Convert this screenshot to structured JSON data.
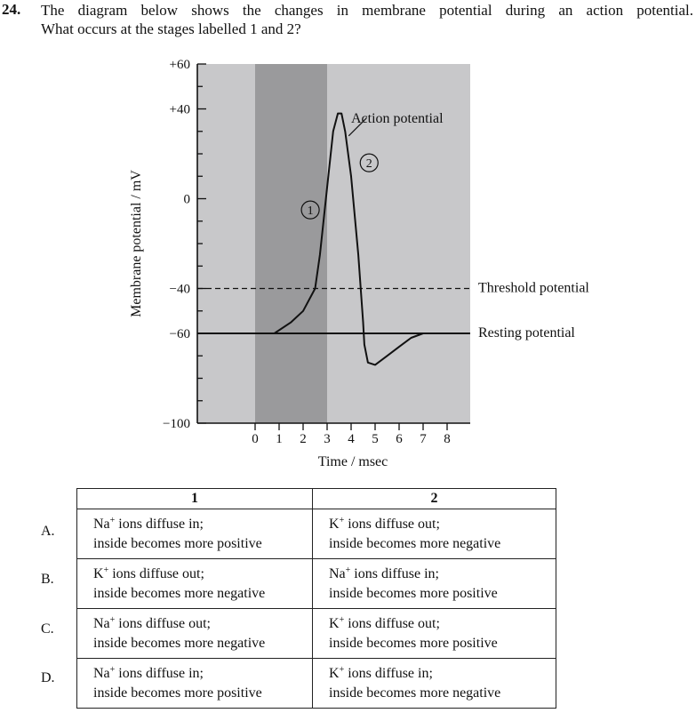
{
  "question": {
    "number": "24.",
    "line1": "The diagram below shows the changes in membrane potential during an action potential.",
    "line2": "What occurs at the stages labelled 1 and 2?"
  },
  "chart_data": {
    "type": "line",
    "xlabel": "Time / msec",
    "ylabel": "Membrane potential / mV",
    "x_ticks": [
      "0",
      "1",
      "2",
      "3",
      "4",
      "5",
      "6",
      "7",
      "8"
    ],
    "y_ticks": [
      "+60",
      "+40",
      "0",
      "−40",
      "−60",
      "−100"
    ],
    "y_tick_values": [
      60,
      40,
      0,
      -40,
      -60,
      -100
    ],
    "xlim": [
      -2.4,
      9
    ],
    "ylim": [
      -100,
      60
    ],
    "shaded_region_x": [
      0,
      3
    ],
    "grid": false,
    "series": [
      {
        "name": "Action potential",
        "x": [
          0,
          0.8,
          1.5,
          2.0,
          2.5,
          2.7,
          3.0,
          3.25,
          3.45,
          3.6,
          3.75,
          4.0,
          4.3,
          4.5,
          4.55,
          4.7,
          5.0,
          5.5,
          6.0,
          6.5,
          7.0,
          7.5,
          8.0
        ],
        "y": [
          -60,
          -60,
          -55,
          -50,
          -40,
          -25,
          5,
          30,
          38,
          38,
          30,
          10,
          -25,
          -55,
          -65,
          -73,
          -74,
          -70,
          -66,
          -62,
          -60,
          -60,
          -60
        ]
      }
    ],
    "reference_lines": [
      {
        "label": "Threshold potential",
        "y": -40,
        "style": "dashed"
      },
      {
        "label": "Resting potential",
        "y": -60,
        "style": "solid"
      }
    ],
    "stage_markers": [
      {
        "label": "1",
        "x": 2.3,
        "y": -5
      },
      {
        "label": "2",
        "x": 4.75,
        "y": 16
      }
    ],
    "callout": {
      "label": "Action potential",
      "x": 3.9,
      "y": 28
    }
  },
  "table": {
    "headers": [
      "1",
      "2"
    ],
    "rows": [
      {
        "letter": "A.",
        "c1": {
          "ion": "Na",
          "charge": "+",
          "rest": " ions diffuse in;",
          "line2": "inside becomes more positive"
        },
        "c2": {
          "ion": "K",
          "charge": "+",
          "rest": " ions diffuse out;",
          "line2": "inside becomes more negative"
        }
      },
      {
        "letter": "B.",
        "c1": {
          "ion": "K",
          "charge": "+",
          "rest": " ions diffuse out;",
          "line2": "inside becomes more negative"
        },
        "c2": {
          "ion": "Na",
          "charge": "+",
          "rest": " ions diffuse in;",
          "line2": "inside becomes more positive"
        }
      },
      {
        "letter": "C.",
        "c1": {
          "ion": "Na",
          "charge": "+",
          "rest": " ions diffuse out;",
          "line2": "inside becomes more negative"
        },
        "c2": {
          "ion": "K",
          "charge": "+",
          "rest": " ions diffuse out;",
          "line2": "inside becomes more positive"
        }
      },
      {
        "letter": "D.",
        "c1": {
          "ion": "Na",
          "charge": "+",
          "rest": " ions diffuse in;",
          "line2": "inside becomes more positive"
        },
        "c2": {
          "ion": "K",
          "charge": "+",
          "rest": " ions diffuse in;",
          "line2": "inside becomes more negative"
        }
      }
    ]
  },
  "colors": {
    "plot_background": "#c8c8ca",
    "shaded_band": "#9a9a9c",
    "line": "#111111"
  }
}
